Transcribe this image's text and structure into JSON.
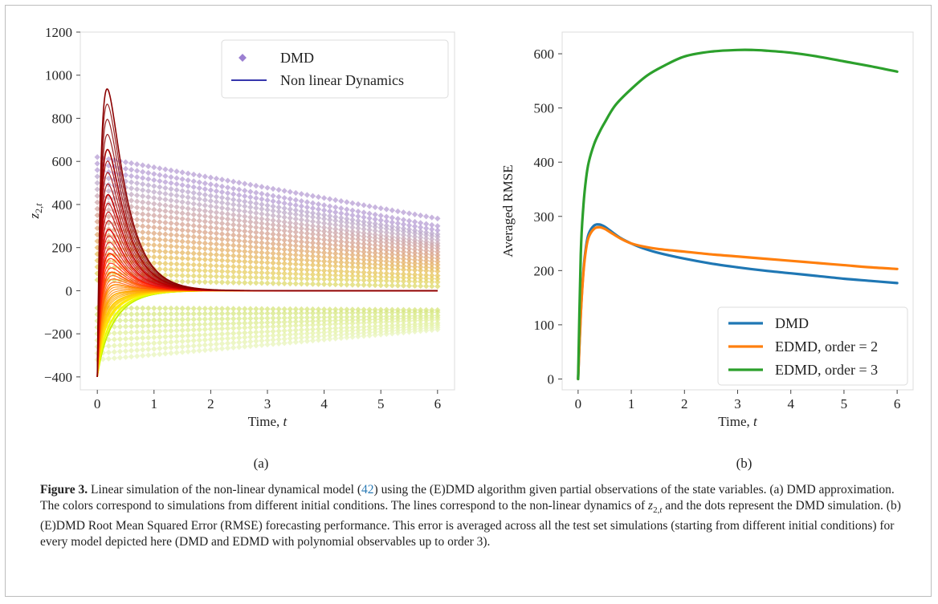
{
  "figure": {
    "caption": {
      "label": "Figure 3.",
      "segments": [
        {
          "t": " Linear simulation of the non-linear dynamical model ("
        },
        {
          "t": "42",
          "ref": true
        },
        {
          "t": ") using the (E)DMD algorithm given partial observations of the state variables. (a) DMD approximation. The colors correspond to simulations from different initial conditions. The lines correspond to the non-linear dynamics of "
        },
        {
          "t": "z",
          "math": true
        },
        {
          "t": "2,",
          "sub": true
        },
        {
          "t": "t",
          "sub": true,
          "math": true
        },
        {
          "t": " and the dots represent the DMD simulation. (b) (E)DMD Root Mean Squared Error (RMSE) forecasting performance. This error is averaged across all the test set simulations (starting from different initial conditions) for every model depicted here (DMD and EDMD with polynomial observables up to order 3)."
        }
      ]
    }
  },
  "chart_data": [
    {
      "panel": "(a)",
      "type": "line",
      "xlabel": "Time, t",
      "ylabel": "z2,t",
      "xlim": [
        -0.3,
        6.3
      ],
      "ylim": [
        -460,
        1200
      ],
      "xticks": [
        0,
        1,
        2,
        3,
        4,
        5,
        6
      ],
      "yticks": [
        -400,
        -200,
        0,
        200,
        400,
        600,
        800,
        1000,
        1200
      ],
      "grid": false,
      "legend_position": "top-right",
      "legend": [
        {
          "label": "DMD",
          "marker": "dot",
          "color": "#9b7fd1"
        },
        {
          "label": "Non linear Dynamics",
          "marker": "line",
          "color": "#1a1aa0"
        }
      ],
      "nonlinear_trajectories": {
        "description_model": "z(t) = z0*exp(-k t) + A*(exp(-k t) - exp(-a t))",
        "k": 3.0,
        "a": 12.0,
        "x_range": [
          0,
          6
        ],
        "series": [
          {
            "z0": -400,
            "A": 2500,
            "color": "#8b0000"
          },
          {
            "z0": -400,
            "A": 1900,
            "color": "#a50000"
          },
          {
            "z0": -400,
            "A": 1450,
            "color": "#c00000"
          },
          {
            "z0": -400,
            "A": 1100,
            "color": "#dd1010"
          },
          {
            "z0": -400,
            "A": 850,
            "color": "#ff2200"
          },
          {
            "z0": -400,
            "A": 650,
            "color": "#ff5500"
          },
          {
            "z0": -400,
            "A": 500,
            "color": "#ff8800"
          },
          {
            "z0": -400,
            "A": 380,
            "color": "#ffaa00"
          },
          {
            "z0": -400,
            "A": 280,
            "color": "#ffcc00"
          },
          {
            "z0": -400,
            "A": 200,
            "color": "#ffe600"
          },
          {
            "z0": -400,
            "A": 120,
            "color": "#eaff00"
          },
          {
            "z0": -400,
            "A": 60,
            "color": "#c8f000"
          }
        ]
      },
      "dmd_series": {
        "x_range": [
          0,
          6
        ],
        "points_per_series": 60,
        "series": [
          {
            "y0": 620,
            "y6": 335,
            "color": "#b49ad2"
          },
          {
            "y0": 590,
            "y6": 300,
            "color": "#b49ad2"
          },
          {
            "y0": 560,
            "y6": 280,
            "color": "#b49ad2"
          },
          {
            "y0": 530,
            "y6": 262,
            "color": "#b8a4cc"
          },
          {
            "y0": 500,
            "y6": 250,
            "color": "#bca8c8"
          },
          {
            "y0": 470,
            "y6": 235,
            "color": "#c0a8c0"
          },
          {
            "y0": 440,
            "y6": 220,
            "color": "#c8a6b4"
          },
          {
            "y0": 410,
            "y6": 208,
            "color": "#cca4a8"
          },
          {
            "y0": 380,
            "y6": 195,
            "color": "#d0a29e"
          },
          {
            "y0": 350,
            "y6": 180,
            "color": "#d4a090"
          },
          {
            "y0": 320,
            "y6": 165,
            "color": "#d8a084"
          },
          {
            "y0": 290,
            "y6": 150,
            "color": "#dca478"
          },
          {
            "y0": 260,
            "y6": 135,
            "color": "#e0a86c"
          },
          {
            "y0": 230,
            "y6": 120,
            "color": "#e4ae64"
          },
          {
            "y0": 200,
            "y6": 105,
            "color": "#e4b45c"
          },
          {
            "y0": 170,
            "y6": 90,
            "color": "#e6bc56"
          },
          {
            "y0": 140,
            "y6": 70,
            "color": "#e6c456"
          },
          {
            "y0": 110,
            "y6": 55,
            "color": "#e6cc5a"
          },
          {
            "y0": 80,
            "y6": 40,
            "color": "#e2d25e"
          },
          {
            "y0": 50,
            "y6": 20,
            "color": "#dcd864"
          },
          {
            "y0": -80,
            "y6": -90,
            "color": "#d6e478"
          },
          {
            "y0": -110,
            "y6": -100,
            "color": "#d6e680"
          },
          {
            "y0": -140,
            "y6": -115,
            "color": "#d8ea88"
          },
          {
            "y0": -170,
            "y6": -125,
            "color": "#dcec90"
          },
          {
            "y0": -200,
            "y6": -135,
            "color": "#e0ee98"
          },
          {
            "y0": -230,
            "y6": -150,
            "color": "#e2f0a0"
          },
          {
            "y0": -260,
            "y6": -160,
            "color": "#e4f2a8"
          },
          {
            "y0": -290,
            "y6": -170,
            "color": "#e6f2b0"
          },
          {
            "y0": -320,
            "y6": -180,
            "color": "#e8f4b8"
          }
        ]
      }
    },
    {
      "panel": "(b)",
      "type": "line",
      "xlabel": "Time, t",
      "ylabel": "Averaged RMSE",
      "xlim": [
        -0.3,
        6.3
      ],
      "ylim": [
        -20,
        640
      ],
      "xticks": [
        0,
        1,
        2,
        3,
        4,
        5,
        6
      ],
      "yticks": [
        0,
        100,
        200,
        300,
        400,
        500,
        600
      ],
      "grid": false,
      "legend_position": "bottom-right",
      "series": [
        {
          "name": "DMD",
          "color": "#1f77b4",
          "x": [
            0,
            0.05,
            0.1,
            0.15,
            0.2,
            0.3,
            0.4,
            0.5,
            0.6,
            0.8,
            1.0,
            1.2,
            1.5,
            2.0,
            2.5,
            3.0,
            3.5,
            4.0,
            4.5,
            5.0,
            5.5,
            6.0
          ],
          "y": [
            0,
            120,
            200,
            245,
            268,
            283,
            285,
            281,
            274,
            260,
            250,
            242,
            233,
            222,
            213,
            206,
            200,
            195,
            190,
            185,
            181,
            177
          ]
        },
        {
          "name": "EDMD, order = 2",
          "color": "#ff7f0e",
          "x": [
            0,
            0.05,
            0.1,
            0.15,
            0.2,
            0.3,
            0.4,
            0.5,
            0.6,
            0.8,
            1.0,
            1.2,
            1.5,
            2.0,
            2.5,
            3.0,
            3.5,
            4.0,
            4.5,
            5.0,
            5.5,
            6.0
          ],
          "y": [
            0,
            118,
            196,
            240,
            262,
            277,
            280,
            277,
            271,
            259,
            250,
            245,
            240,
            235,
            230,
            226,
            222,
            218,
            214,
            210,
            206,
            203
          ]
        },
        {
          "name": "EDMD, order = 3",
          "color": "#2ca02c",
          "x": [
            0,
            0.05,
            0.1,
            0.15,
            0.2,
            0.3,
            0.4,
            0.5,
            0.7,
            1.0,
            1.3,
            1.6,
            2.0,
            2.5,
            3.0,
            3.3,
            3.5,
            4.0,
            4.5,
            5.0,
            5.5,
            6.0
          ],
          "y": [
            0,
            230,
            320,
            370,
            400,
            433,
            455,
            473,
            505,
            535,
            560,
            577,
            595,
            604,
            607,
            607,
            606,
            602,
            595,
            586,
            577,
            567
          ]
        }
      ]
    }
  ]
}
